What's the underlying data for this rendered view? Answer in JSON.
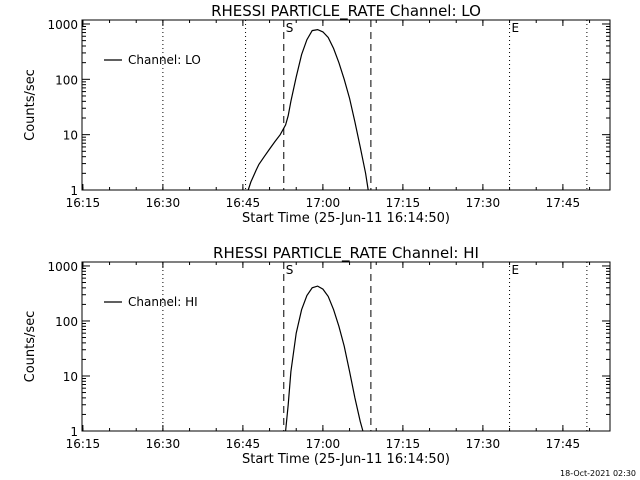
{
  "footer": {
    "timestamp": "18-Oct-2021 02:30"
  },
  "chart_data": [
    {
      "type": "line",
      "title": "RHESSI PARTICLE_RATE Channel: LO",
      "xlabel": "Start Time (25-Jun-11 16:14:50)",
      "ylabel": "Counts/sec",
      "x_ticks": [
        "16:15",
        "16:30",
        "16:45",
        "17:00",
        "17:15",
        "17:30",
        "17:45"
      ],
      "y_ticks": [
        "1",
        "10",
        "100",
        "1000"
      ],
      "y_scale": "log",
      "ylim": [
        1,
        1000
      ],
      "legend": {
        "label": "Channel: LO",
        "position": "top-left"
      },
      "markers": [
        {
          "label": "S",
          "time": "16:52:40",
          "style": "dashed"
        },
        {
          "label": "",
          "time": "17:09:00",
          "style": "dashed"
        },
        {
          "label": "E",
          "time": "17:35:00",
          "style": "dotted"
        },
        {
          "label": "",
          "time": "17:49:30",
          "style": "dotted"
        },
        {
          "label": "",
          "time": "16:30:00",
          "style": "dotted"
        },
        {
          "label": "",
          "time": "16:45:30",
          "style": "dotted"
        }
      ],
      "series": [
        {
          "name": "Channel: LO",
          "points": [
            [
              "16:46:00",
              1.0
            ],
            [
              "16:46:30",
              1.4
            ],
            [
              "16:47:00",
              1.8
            ],
            [
              "16:47:30",
              2.3
            ],
            [
              "16:48:00",
              2.9
            ],
            [
              "16:49:00",
              4.0
            ],
            [
              "16:50:00",
              5.5
            ],
            [
              "16:51:00",
              7.5
            ],
            [
              "16:52:00",
              10
            ],
            [
              "16:53:00",
              15
            ],
            [
              "16:53:30",
              22
            ],
            [
              "16:54:00",
              40
            ],
            [
              "16:55:00",
              110
            ],
            [
              "16:56:00",
              280
            ],
            [
              "16:57:00",
              520
            ],
            [
              "16:58:00",
              760
            ],
            [
              "16:59:00",
              790
            ],
            [
              "17:00:00",
              720
            ],
            [
              "17:01:00",
              570
            ],
            [
              "17:02:00",
              360
            ],
            [
              "17:03:00",
              200
            ],
            [
              "17:04:00",
              100
            ],
            [
              "17:05:00",
              45
            ],
            [
              "17:06:00",
              17
            ],
            [
              "17:07:00",
              6
            ],
            [
              "17:08:00",
              2
            ],
            [
              "17:08:30",
              1.0
            ]
          ]
        }
      ]
    },
    {
      "type": "line",
      "title": "RHESSI PARTICLE_RATE Channel: HI",
      "xlabel": "Start Time (25-Jun-11 16:14:50)",
      "ylabel": "Counts/sec",
      "x_ticks": [
        "16:15",
        "16:30",
        "16:45",
        "17:00",
        "17:15",
        "17:30",
        "17:45"
      ],
      "y_ticks": [
        "1",
        "10",
        "100",
        "1000"
      ],
      "y_scale": "log",
      "ylim": [
        1,
        1000
      ],
      "legend": {
        "label": "Channel: HI",
        "position": "top-left"
      },
      "markers": [
        {
          "label": "S",
          "time": "16:52:40",
          "style": "dashed"
        },
        {
          "label": "",
          "time": "17:09:00",
          "style": "dashed"
        },
        {
          "label": "E",
          "time": "17:35:00",
          "style": "dotted"
        },
        {
          "label": "",
          "time": "17:49:30",
          "style": "dotted"
        },
        {
          "label": "",
          "time": "16:30:00",
          "style": "dotted"
        }
      ],
      "series": [
        {
          "name": "Channel: HI",
          "points": [
            [
              "16:53:00",
              1.0
            ],
            [
              "16:53:30",
              3
            ],
            [
              "16:54:00",
              12
            ],
            [
              "16:55:00",
              60
            ],
            [
              "16:56:00",
              160
            ],
            [
              "16:57:00",
              290
            ],
            [
              "16:58:00",
              400
            ],
            [
              "16:59:00",
              430
            ],
            [
              "17:00:00",
              380
            ],
            [
              "17:01:00",
              280
            ],
            [
              "17:02:00",
              160
            ],
            [
              "17:03:00",
              80
            ],
            [
              "17:04:00",
              35
            ],
            [
              "17:05:00",
              12
            ],
            [
              "17:06:00",
              4
            ],
            [
              "17:07:00",
              1.5
            ],
            [
              "17:07:30",
              1.0
            ]
          ]
        }
      ]
    }
  ]
}
